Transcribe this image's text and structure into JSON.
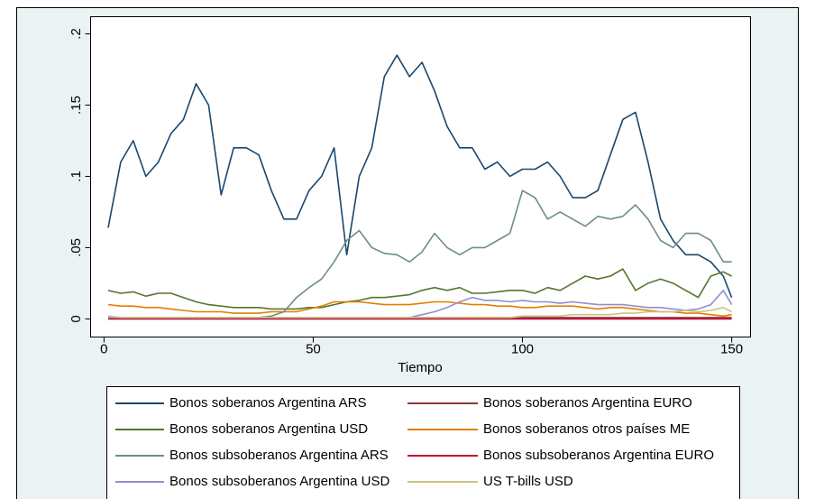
{
  "chart_data": {
    "type": "line",
    "x_label": "Tiempo",
    "x": [
      1,
      4,
      7,
      10,
      13,
      16,
      19,
      22,
      25,
      28,
      31,
      34,
      37,
      40,
      43,
      46,
      49,
      52,
      55,
      58,
      61,
      64,
      67,
      70,
      73,
      76,
      79,
      82,
      85,
      88,
      91,
      94,
      97,
      100,
      103,
      106,
      109,
      112,
      115,
      118,
      121,
      124,
      127,
      130,
      133,
      136,
      139,
      142,
      145,
      148,
      150
    ],
    "xlim": [
      -3.2,
      154.5
    ],
    "xticks": [
      0,
      50,
      100,
      150
    ],
    "ylim": [
      -0.0127,
      0.212
    ],
    "yticks": [
      0,
      {
        "value": 0.05,
        "label": ".05"
      },
      {
        "value": 0.1,
        "label": ".1"
      },
      {
        "value": 0.15,
        "label": ".15"
      },
      {
        "value": 0.2,
        "label": ".2"
      }
    ],
    "series": [
      {
        "name": "Bonos soberanos Argentina ARS",
        "color": "#1a476f",
        "values": [
          0.064,
          0.11,
          0.125,
          0.1,
          0.11,
          0.13,
          0.14,
          0.165,
          0.15,
          0.087,
          0.12,
          0.12,
          0.115,
          0.09,
          0.07,
          0.07,
          0.09,
          0.1,
          0.12,
          0.045,
          0.1,
          0.12,
          0.17,
          0.185,
          0.17,
          0.18,
          0.16,
          0.135,
          0.12,
          0.12,
          0.105,
          0.11,
          0.1,
          0.105,
          0.105,
          0.11,
          0.1,
          0.085,
          0.085,
          0.09,
          0.115,
          0.14,
          0.145,
          0.11,
          0.07,
          0.055,
          0.045,
          0.045,
          0.04,
          0.03,
          0.015
        ]
      },
      {
        "name": "Bonos soberanos Argentina EURO",
        "color": "#90353b",
        "values": [
          0.001,
          0.001,
          0.001,
          0.001,
          0.001,
          0.001,
          0.001,
          0.001,
          0.001,
          0.001,
          0.001,
          0.001,
          0.001,
          0.001,
          0.001,
          0.001,
          0.001,
          0.001,
          0.001,
          0.001,
          0.001,
          0.001,
          0.001,
          0.001,
          0.001,
          0.001,
          0.001,
          0.001,
          0.001,
          0.001,
          0.001,
          0.001,
          0.001,
          0.001,
          0.001,
          0.001,
          0.001,
          0.001,
          0.001,
          0.001,
          0.001,
          0.001,
          0.001,
          0.001,
          0.001,
          0.001,
          0.001,
          0.001,
          0.001,
          0.001,
          0.001
        ]
      },
      {
        "name": "Bonos soberanos Argentina USD",
        "color": "#55752f",
        "values": [
          0.02,
          0.018,
          0.019,
          0.016,
          0.018,
          0.018,
          0.015,
          0.012,
          0.01,
          0.009,
          0.008,
          0.008,
          0.008,
          0.007,
          0.007,
          0.007,
          0.008,
          0.008,
          0.01,
          0.012,
          0.013,
          0.015,
          0.015,
          0.016,
          0.017,
          0.02,
          0.022,
          0.02,
          0.022,
          0.018,
          0.018,
          0.019,
          0.02,
          0.02,
          0.018,
          0.022,
          0.02,
          0.025,
          0.03,
          0.028,
          0.03,
          0.035,
          0.02,
          0.025,
          0.028,
          0.025,
          0.02,
          0.015,
          0.03,
          0.033,
          0.03
        ]
      },
      {
        "name": "Bonos soberanos otros países ME",
        "color": "#e37e00",
        "values": [
          0.01,
          0.009,
          0.009,
          0.008,
          0.008,
          0.007,
          0.006,
          0.005,
          0.005,
          0.005,
          0.004,
          0.004,
          0.004,
          0.005,
          0.005,
          0.005,
          0.007,
          0.009,
          0.012,
          0.012,
          0.012,
          0.011,
          0.01,
          0.01,
          0.01,
          0.011,
          0.012,
          0.012,
          0.011,
          0.01,
          0.01,
          0.009,
          0.009,
          0.008,
          0.008,
          0.009,
          0.009,
          0.009,
          0.008,
          0.007,
          0.008,
          0.008,
          0.007,
          0.006,
          0.005,
          0.005,
          0.004,
          0.004,
          0.003,
          0.002,
          0.003
        ]
      },
      {
        "name": "Bonos subsoberanos Argentina ARS",
        "color": "#6e8e84",
        "values": [
          0.001,
          0.001,
          0.001,
          0.001,
          0.001,
          0.001,
          0.001,
          0.001,
          0.001,
          0.001,
          0.001,
          0.001,
          0.001,
          0.002,
          0.005,
          0.015,
          0.022,
          0.028,
          0.04,
          0.055,
          0.062,
          0.05,
          0.046,
          0.045,
          0.04,
          0.047,
          0.06,
          0.05,
          0.045,
          0.05,
          0.05,
          0.055,
          0.06,
          0.09,
          0.085,
          0.07,
          0.075,
          0.07,
          0.065,
          0.072,
          0.07,
          0.072,
          0.08,
          0.07,
          0.055,
          0.05,
          0.06,
          0.06,
          0.055,
          0.04,
          0.04
        ]
      },
      {
        "name": "Bonos subsoberanos Argentina EURO",
        "color": "#c10534",
        "values": [
          0,
          0,
          0,
          0,
          0,
          0,
          0,
          0,
          0,
          0,
          0,
          0,
          0,
          0,
          0,
          0,
          0,
          0,
          0,
          0,
          0,
          0,
          0,
          0,
          0,
          0,
          0,
          0,
          0,
          0,
          0,
          0,
          0,
          0,
          0,
          0,
          0,
          0,
          0,
          0,
          0,
          0,
          0,
          0,
          0,
          0,
          0,
          0,
          0,
          0,
          0
        ]
      },
      {
        "name": "Bonos subsoberanos Argentina USD",
        "color": "#938dd2",
        "values": [
          0.001,
          0.001,
          0.001,
          0.001,
          0.001,
          0.001,
          0.001,
          0.001,
          0.001,
          0.001,
          0.001,
          0.001,
          0.001,
          0.001,
          0.001,
          0.001,
          0.001,
          0.001,
          0.001,
          0.001,
          0.001,
          0.001,
          0.001,
          0.001,
          0.001,
          0.003,
          0.005,
          0.008,
          0.012,
          0.015,
          0.013,
          0.013,
          0.012,
          0.013,
          0.012,
          0.012,
          0.011,
          0.012,
          0.011,
          0.01,
          0.01,
          0.01,
          0.009,
          0.008,
          0.008,
          0.007,
          0.006,
          0.007,
          0.01,
          0.02,
          0.01
        ]
      },
      {
        "name": "US T-bills USD",
        "color": "#cac27e",
        "values": [
          0.002,
          0.001,
          0.001,
          0.001,
          0.001,
          0.001,
          0.001,
          0.001,
          0.001,
          0.001,
          0.001,
          0.001,
          0.001,
          0.001,
          0.001,
          0.001,
          0.001,
          0.001,
          0.001,
          0.001,
          0.001,
          0.001,
          0.001,
          0.001,
          0.001,
          0.001,
          0.001,
          0.001,
          0.001,
          0.001,
          0.001,
          0.001,
          0.001,
          0.002,
          0.002,
          0.002,
          0.002,
          0.003,
          0.003,
          0.003,
          0.003,
          0.004,
          0.004,
          0.005,
          0.005,
          0.005,
          0.006,
          0.005,
          0.006,
          0.008,
          0.005
        ]
      }
    ]
  }
}
